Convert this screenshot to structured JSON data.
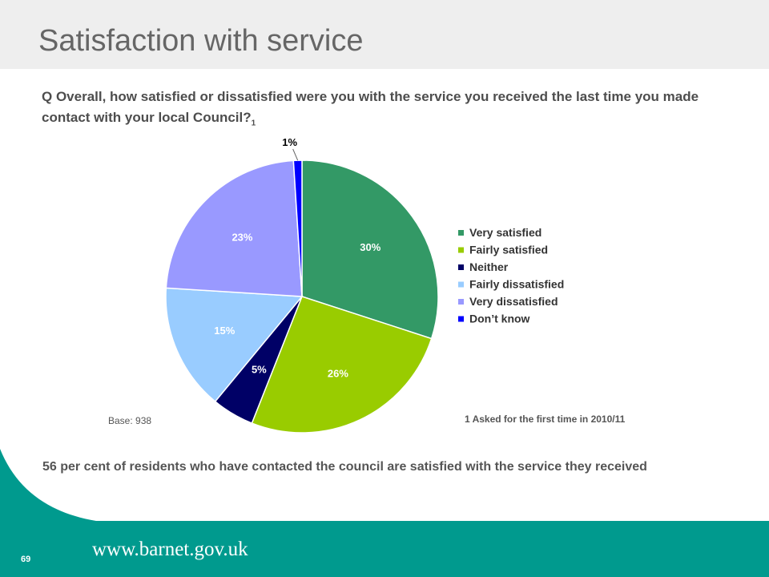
{
  "header": {
    "title": "Satisfaction with service"
  },
  "question": {
    "text": "Q Overall, how satisfied or dissatisfied were you with the service you received the last time you made contact with your local Council?",
    "footnote_marker": "1"
  },
  "chart_data": {
    "type": "pie",
    "title": "",
    "categories": [
      "Very satisfied",
      "Fairly satisfied",
      "Neither",
      "Fairly dissatisfied",
      "Very dissatisfied",
      "Don’t know"
    ],
    "values": [
      30,
      26,
      5,
      15,
      23,
      1
    ],
    "labels": [
      "30%",
      "26%",
      "5%",
      "15%",
      "23%",
      "1%"
    ],
    "colors": [
      "#339966",
      "#99cc00",
      "#000066",
      "#99ccff",
      "#9999ff",
      "#0000ff"
    ],
    "legend_position": "right"
  },
  "base": {
    "label": "Base:",
    "value": "938"
  },
  "footnote": "1 Asked for the first time in 2010/11",
  "summary": "56 per cent of residents who have contacted the council are satisfied with the service they received",
  "footer": {
    "url": "www.barnet.gov.uk",
    "page_number": "69",
    "band_color": "#009a8e"
  }
}
